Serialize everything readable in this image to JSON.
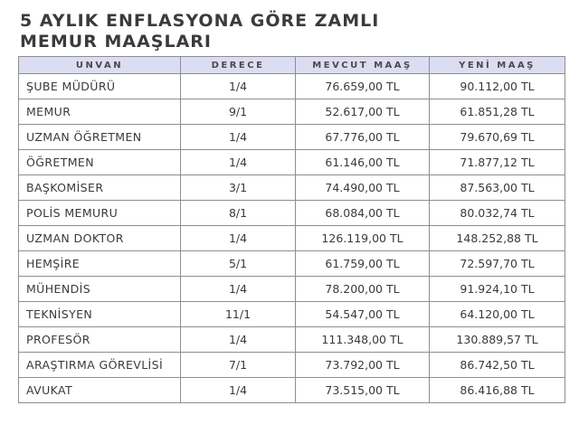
{
  "title": {
    "line1": "5 AYLIK ENFLASYONA GÖRE ZAMLI",
    "line2": "MEMUR MAAŞLARI"
  },
  "table": {
    "headers": [
      "UNVAN",
      "DERECE",
      "MEVCUT MAAŞ",
      "YENİ MAAŞ"
    ],
    "rows": [
      [
        "ŞUBE MÜDÜRÜ",
        "1/4",
        "76.659,00 TL",
        "90.112,00 TL"
      ],
      [
        "MEMUR",
        "9/1",
        "52.617,00 TL",
        "61.851,28 TL"
      ],
      [
        "UZMAN ÖĞRETMEN",
        "1/4",
        "67.776,00 TL",
        "79.670,69 TL"
      ],
      [
        "ÖĞRETMEN",
        "1/4",
        "61.146,00 TL",
        "71.877,12 TL"
      ],
      [
        "BAŞKOMİSER",
        "3/1",
        "74.490,00 TL",
        "87.563,00 TL"
      ],
      [
        "POLİS MEMURU",
        "8/1",
        "68.084,00 TL",
        "80.032,74 TL"
      ],
      [
        "UZMAN DOKTOR",
        "1/4",
        "126.119,00 TL",
        "148.252,88 TL"
      ],
      [
        "HEMŞİRE",
        "5/1",
        "61.759,00 TL",
        "72.597,70 TL"
      ],
      [
        "MÜHENDİS",
        "1/4",
        "78.200,00 TL",
        "91.924,10 TL"
      ],
      [
        "TEKNİSYEN",
        "11/1",
        "54.547,00 TL",
        "64.120,00 TL"
      ],
      [
        "PROFESÖR",
        "1/4",
        "111.348,00 TL",
        "130.889,57 TL"
      ],
      [
        "ARAŞTIRMA GÖREVLİSİ",
        "7/1",
        "73.792,00 TL",
        "86.742,50 TL"
      ],
      [
        "AVUKAT",
        "1/4",
        "73.515,00 TL",
        "86.416,88 TL"
      ]
    ]
  },
  "colors": {
    "header_background": "#dcdcf2",
    "border": "#8e8e8e",
    "title_text": "#3b3b3b",
    "body_text": "#3a3a3a"
  }
}
